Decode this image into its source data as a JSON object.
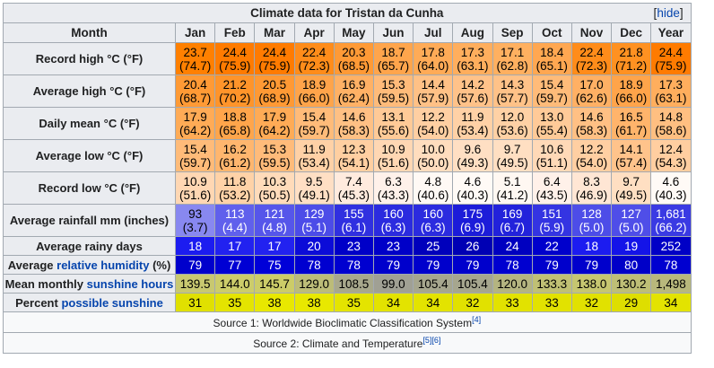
{
  "title": "Climate data for Tristan da Cunha",
  "hide_label": "hide",
  "month_header": "Month",
  "months": [
    "Jan",
    "Feb",
    "Mar",
    "Apr",
    "May",
    "Jun",
    "Jul",
    "Aug",
    "Sep",
    "Oct",
    "Nov",
    "Dec",
    "Year"
  ],
  "rows": [
    {
      "label": "Record high °C (°F)",
      "cells": [
        {
          "c": "23.7",
          "f": "(74.7)",
          "bg": "#ff8000",
          "fg": "#000000"
        },
        {
          "c": "24.4",
          "f": "(75.9)",
          "bg": "#ff7b00",
          "fg": "#000000"
        },
        {
          "c": "24.4",
          "f": "(75.9)",
          "bg": "#ff7b00",
          "fg": "#000000"
        },
        {
          "c": "22.4",
          "f": "(72.3)",
          "bg": "#ff8c1a",
          "fg": "#000000"
        },
        {
          "c": "20.3",
          "f": "(68.5)",
          "bg": "#ff9a36",
          "fg": "#000000"
        },
        {
          "c": "18.7",
          "f": "(65.7)",
          "bg": "#ffa54c",
          "fg": "#000000"
        },
        {
          "c": "17.8",
          "f": "(64.0)",
          "bg": "#ffab57",
          "fg": "#000000"
        },
        {
          "c": "17.3",
          "f": "(63.1)",
          "bg": "#ffae5d",
          "fg": "#000000"
        },
        {
          "c": "17.1",
          "f": "(62.8)",
          "bg": "#ffb060",
          "fg": "#000000"
        },
        {
          "c": "18.4",
          "f": "(65.1)",
          "bg": "#ffa751",
          "fg": "#000000"
        },
        {
          "c": "22.4",
          "f": "(72.3)",
          "bg": "#ff8c1a",
          "fg": "#000000"
        },
        {
          "c": "21.8",
          "f": "(71.2)",
          "bg": "#ff9121",
          "fg": "#000000"
        },
        {
          "c": "24.4",
          "f": "(75.9)",
          "bg": "#ff7b00",
          "fg": "#000000"
        }
      ]
    },
    {
      "label": "Average high °C (°F)",
      "cells": [
        {
          "c": "20.4",
          "f": "(68.7)",
          "bg": "#ff9a35",
          "fg": "#000000"
        },
        {
          "c": "21.2",
          "f": "(70.2)",
          "bg": "#ff942a",
          "fg": "#000000"
        },
        {
          "c": "20.5",
          "f": "(68.9)",
          "bg": "#ff9934",
          "fg": "#000000"
        },
        {
          "c": "18.9",
          "f": "(66.0)",
          "bg": "#ffa44a",
          "fg": "#000000"
        },
        {
          "c": "16.9",
          "f": "(62.4)",
          "bg": "#ffb165",
          "fg": "#000000"
        },
        {
          "c": "15.3",
          "f": "(59.5)",
          "bg": "#ffbb7a",
          "fg": "#000000"
        },
        {
          "c": "14.4",
          "f": "(57.9)",
          "bg": "#ffc186",
          "fg": "#000000"
        },
        {
          "c": "14.2",
          "f": "(57.6)",
          "bg": "#ffc289",
          "fg": "#000000"
        },
        {
          "c": "14.3",
          "f": "(57.7)",
          "bg": "#ffc288",
          "fg": "#000000"
        },
        {
          "c": "15.4",
          "f": "(59.7)",
          "bg": "#ffbb79",
          "fg": "#000000"
        },
        {
          "c": "17.0",
          "f": "(62.6)",
          "bg": "#ffb064",
          "fg": "#000000"
        },
        {
          "c": "18.9",
          "f": "(66.0)",
          "bg": "#ffa44a",
          "fg": "#000000"
        },
        {
          "c": "17.3",
          "f": "(63.1)",
          "bg": "#ffae5d",
          "fg": "#000000"
        }
      ]
    },
    {
      "label": "Daily mean °C (°F)",
      "cells": [
        {
          "c": "17.9",
          "f": "(64.2)",
          "bg": "#ffab56",
          "fg": "#000000"
        },
        {
          "c": "18.8",
          "f": "(65.8)",
          "bg": "#ffa54b",
          "fg": "#000000"
        },
        {
          "c": "17.9",
          "f": "(64.2)",
          "bg": "#ffab56",
          "fg": "#000000"
        },
        {
          "c": "15.4",
          "f": "(59.7)",
          "bg": "#ffbb79",
          "fg": "#000000"
        },
        {
          "c": "14.6",
          "f": "(58.3)",
          "bg": "#ffc084",
          "fg": "#000000"
        },
        {
          "c": "13.1",
          "f": "(55.6)",
          "bg": "#ffca97",
          "fg": "#000000"
        },
        {
          "c": "12.2",
          "f": "(54.0)",
          "bg": "#ffcfa2",
          "fg": "#000000"
        },
        {
          "c": "11.9",
          "f": "(53.4)",
          "bg": "#ffd1a6",
          "fg": "#000000"
        },
        {
          "c": "12.0",
          "f": "(53.6)",
          "bg": "#ffd1a5",
          "fg": "#000000"
        },
        {
          "c": "13.0",
          "f": "(55.4)",
          "bg": "#ffca98",
          "fg": "#000000"
        },
        {
          "c": "14.6",
          "f": "(58.3)",
          "bg": "#ffc084",
          "fg": "#000000"
        },
        {
          "c": "16.5",
          "f": "(61.7)",
          "bg": "#ffb46b",
          "fg": "#000000"
        },
        {
          "c": "14.8",
          "f": "(58.6)",
          "bg": "#ffbf81",
          "fg": "#000000"
        }
      ]
    },
    {
      "label": "Average low °C (°F)",
      "cells": [
        {
          "c": "15.4",
          "f": "(59.7)",
          "bg": "#ffbb79",
          "fg": "#000000"
        },
        {
          "c": "16.2",
          "f": "(61.2)",
          "bg": "#ffb66e",
          "fg": "#000000"
        },
        {
          "c": "15.3",
          "f": "(59.5)",
          "bg": "#ffbb7a",
          "fg": "#000000"
        },
        {
          "c": "11.9",
          "f": "(53.4)",
          "bg": "#ffd1a6",
          "fg": "#000000"
        },
        {
          "c": "12.3",
          "f": "(54.1)",
          "bg": "#ffcfa1",
          "fg": "#000000"
        },
        {
          "c": "10.9",
          "f": "(51.6)",
          "bg": "#ffd7b3",
          "fg": "#000000"
        },
        {
          "c": "10.0",
          "f": "(50.0)",
          "bg": "#ffddbe",
          "fg": "#000000"
        },
        {
          "c": "9.6",
          "f": "(49.3)",
          "bg": "#ffdfc3",
          "fg": "#000000"
        },
        {
          "c": "9.7",
          "f": "(49.5)",
          "bg": "#ffdfc2",
          "fg": "#000000"
        },
        {
          "c": "10.6",
          "f": "(51.1)",
          "bg": "#ffd9b7",
          "fg": "#000000"
        },
        {
          "c": "12.2",
          "f": "(54.0)",
          "bg": "#ffcfa2",
          "fg": "#000000"
        },
        {
          "c": "14.1",
          "f": "(57.4)",
          "bg": "#ffc38b",
          "fg": "#000000"
        },
        {
          "c": "12.4",
          "f": "(54.3)",
          "bg": "#ffcea0",
          "fg": "#000000"
        }
      ]
    },
    {
      "label": "Record low °C (°F)",
      "cells": [
        {
          "c": "10.9",
          "f": "(51.6)",
          "bg": "#ffd7b3",
          "fg": "#000000"
        },
        {
          "c": "11.8",
          "f": "(53.2)",
          "bg": "#ffd2a7",
          "fg": "#000000"
        },
        {
          "c": "10.3",
          "f": "(50.5)",
          "bg": "#ffdbba",
          "fg": "#000000"
        },
        {
          "c": "9.5",
          "f": "(49.1)",
          "bg": "#ffdfc4",
          "fg": "#000000"
        },
        {
          "c": "7.4",
          "f": "(45.3)",
          "bg": "#ffebde",
          "fg": "#000000"
        },
        {
          "c": "6.3",
          "f": "(43.3)",
          "bg": "#fff1ea",
          "fg": "#000000"
        },
        {
          "c": "4.8",
          "f": "(40.6)",
          "bg": "#fff9f5",
          "fg": "#000000"
        },
        {
          "c": "4.6",
          "f": "(40.3)",
          "bg": "#fffaf6",
          "fg": "#000000"
        },
        {
          "c": "5.1",
          "f": "(41.2)",
          "bg": "#fff8f2",
          "fg": "#000000"
        },
        {
          "c": "6.4",
          "f": "(43.5)",
          "bg": "#fff1e9",
          "fg": "#000000"
        },
        {
          "c": "8.3",
          "f": "(46.9)",
          "bg": "#ffe6d4",
          "fg": "#000000"
        },
        {
          "c": "9.7",
          "f": "(49.5)",
          "bg": "#ffdfc2",
          "fg": "#000000"
        },
        {
          "c": "4.6",
          "f": "(40.3)",
          "bg": "#fffaf6",
          "fg": "#000000"
        }
      ]
    },
    {
      "label": "Average rainfall mm (inches)",
      "cells": [
        {
          "c": "93",
          "f": "(3.7)",
          "bg": "#8888f0",
          "fg": "#000000"
        },
        {
          "c": "113",
          "f": "(4.4)",
          "bg": "#6060ec",
          "fg": "#ffffff"
        },
        {
          "c": "121",
          "f": "(4.8)",
          "bg": "#5656ea",
          "fg": "#ffffff"
        },
        {
          "c": "129",
          "f": "(5.1)",
          "bg": "#4c4ce8",
          "fg": "#ffffff"
        },
        {
          "c": "155",
          "f": "(6.1)",
          "bg": "#3030e0",
          "fg": "#ffffff"
        },
        {
          "c": "160",
          "f": "(6.3)",
          "bg": "#2b2bdf",
          "fg": "#ffffff"
        },
        {
          "c": "160",
          "f": "(6.3)",
          "bg": "#2b2bdf",
          "fg": "#ffffff"
        },
        {
          "c": "175",
          "f": "(6.9)",
          "bg": "#1c1cd9",
          "fg": "#ffffff"
        },
        {
          "c": "169",
          "f": "(6.7)",
          "bg": "#2222db",
          "fg": "#ffffff"
        },
        {
          "c": "151",
          "f": "(5.9)",
          "bg": "#3434e2",
          "fg": "#ffffff"
        },
        {
          "c": "128",
          "f": "(5.0)",
          "bg": "#4d4de8",
          "fg": "#ffffff"
        },
        {
          "c": "127",
          "f": "(5.0)",
          "bg": "#4f4ee8",
          "fg": "#ffffff"
        },
        {
          "c": "1,681",
          "f": "(66.2)",
          "bg": "#3a3ae3",
          "fg": "#ffffff"
        }
      ]
    },
    {
      "label": "Average rainy days",
      "cells": [
        {
          "c": "18",
          "bg": "#1c1cf0",
          "fg": "#ffffff"
        },
        {
          "c": "17",
          "bg": "#2222f0",
          "fg": "#ffffff"
        },
        {
          "c": "17",
          "bg": "#2222f0",
          "fg": "#ffffff"
        },
        {
          "c": "20",
          "bg": "#0c0cd8",
          "fg": "#ffffff"
        },
        {
          "c": "23",
          "bg": "#0000c8",
          "fg": "#ffffff"
        },
        {
          "c": "23",
          "bg": "#0000c8",
          "fg": "#ffffff"
        },
        {
          "c": "25",
          "bg": "#0000bc",
          "fg": "#ffffff"
        },
        {
          "c": "26",
          "bg": "#0000b4",
          "fg": "#ffffff"
        },
        {
          "c": "24",
          "bg": "#0000c0",
          "fg": "#ffffff"
        },
        {
          "c": "22",
          "bg": "#0000cc",
          "fg": "#ffffff"
        },
        {
          "c": "18",
          "bg": "#1c1cf0",
          "fg": "#ffffff"
        },
        {
          "c": "19",
          "bg": "#1414e8",
          "fg": "#ffffff"
        },
        {
          "c": "252",
          "bg": "#0000c6",
          "fg": "#ffffff"
        }
      ]
    },
    {
      "label_parts": [
        "Average ",
        "relative humidity",
        " (%)"
      ],
      "cells": [
        {
          "c": "79",
          "bg": "#0000cc",
          "fg": "#ffffff"
        },
        {
          "c": "77",
          "bg": "#0000d4",
          "fg": "#ffffff"
        },
        {
          "c": "75",
          "bg": "#0000d8",
          "fg": "#ffffff"
        },
        {
          "c": "78",
          "bg": "#0000d0",
          "fg": "#ffffff"
        },
        {
          "c": "78",
          "bg": "#0000d0",
          "fg": "#ffffff"
        },
        {
          "c": "79",
          "bg": "#0000cc",
          "fg": "#ffffff"
        },
        {
          "c": "79",
          "bg": "#0000cc",
          "fg": "#ffffff"
        },
        {
          "c": "79",
          "bg": "#0000cc",
          "fg": "#ffffff"
        },
        {
          "c": "78",
          "bg": "#0000d0",
          "fg": "#ffffff"
        },
        {
          "c": "79",
          "bg": "#0000cc",
          "fg": "#ffffff"
        },
        {
          "c": "79",
          "bg": "#0000cc",
          "fg": "#ffffff"
        },
        {
          "c": "80",
          "bg": "#0000c8",
          "fg": "#ffffff"
        },
        {
          "c": "78",
          "bg": "#0000d0",
          "fg": "#ffffff"
        }
      ]
    },
    {
      "label_parts": [
        "Mean monthly ",
        "sunshine hours",
        ""
      ],
      "cells": [
        {
          "c": "139.5",
          "bg": "#c8c870",
          "fg": "#000000"
        },
        {
          "c": "144.0",
          "bg": "#cccc6a",
          "fg": "#000000"
        },
        {
          "c": "145.7",
          "bg": "#cccc68",
          "fg": "#000000"
        },
        {
          "c": "129.0",
          "bg": "#bcbc78",
          "fg": "#000000"
        },
        {
          "c": "108.5",
          "bg": "#a8a88c",
          "fg": "#000000"
        },
        {
          "c": "99.0",
          "bg": "#a0a094",
          "fg": "#000000"
        },
        {
          "c": "105.4",
          "bg": "#a6a68e",
          "fg": "#000000"
        },
        {
          "c": "105.4",
          "bg": "#a6a68e",
          "fg": "#000000"
        },
        {
          "c": "120.0",
          "bg": "#b4b480",
          "fg": "#000000"
        },
        {
          "c": "133.3",
          "bg": "#c0c074",
          "fg": "#000000"
        },
        {
          "c": "138.0",
          "bg": "#c6c670",
          "fg": "#000000"
        },
        {
          "c": "130.2",
          "bg": "#bebe76",
          "fg": "#000000"
        },
        {
          "c": "1,498",
          "bg": "#b8b87c",
          "fg": "#000000"
        }
      ]
    },
    {
      "label_parts": [
        "Percent ",
        "possible sunshine",
        ""
      ],
      "cells": [
        {
          "c": "31",
          "bg": "#e0e000",
          "fg": "#000000"
        },
        {
          "c": "35",
          "bg": "#e4e400",
          "fg": "#000000"
        },
        {
          "c": "38",
          "bg": "#e8e800",
          "fg": "#000000"
        },
        {
          "c": "38",
          "bg": "#e8e800",
          "fg": "#000000"
        },
        {
          "c": "35",
          "bg": "#e4e400",
          "fg": "#000000"
        },
        {
          "c": "34",
          "bg": "#e3e300",
          "fg": "#000000"
        },
        {
          "c": "34",
          "bg": "#e3e300",
          "fg": "#000000"
        },
        {
          "c": "32",
          "bg": "#e1e100",
          "fg": "#000000"
        },
        {
          "c": "33",
          "bg": "#e2e200",
          "fg": "#000000"
        },
        {
          "c": "33",
          "bg": "#e2e200",
          "fg": "#000000"
        },
        {
          "c": "32",
          "bg": "#e1e100",
          "fg": "#000000"
        },
        {
          "c": "29",
          "bg": "#dede00",
          "fg": "#000000"
        },
        {
          "c": "34",
          "bg": "#e3e300",
          "fg": "#000000"
        }
      ]
    }
  ],
  "sources": [
    {
      "text": "Source 1: Worldwide Bioclimatic Classification System",
      "refs": "[4]"
    },
    {
      "text": "Source 2: Climate and Temperature",
      "refs": "[5][6]"
    }
  ]
}
